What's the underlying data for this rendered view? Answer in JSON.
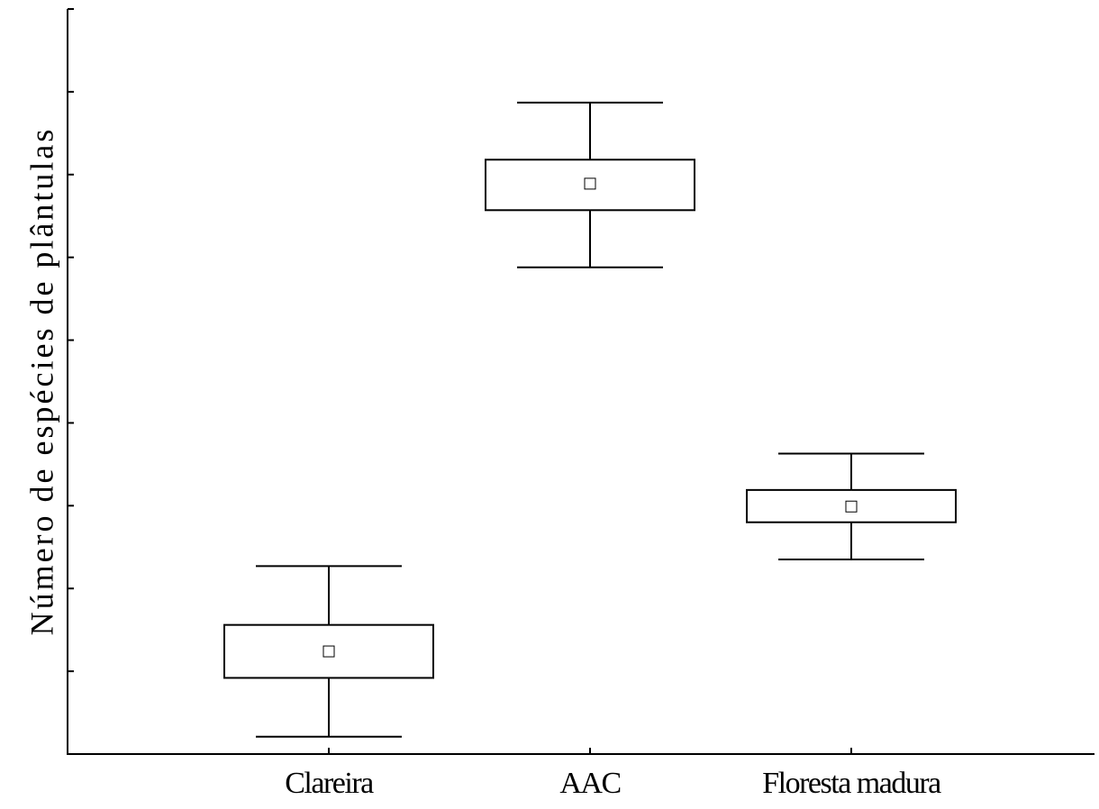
{
  "chart_data": {
    "type": "box",
    "y_label": "Número de espécies de plântulas",
    "categories": [
      "Clareira",
      "AAC",
      "Floresta madura"
    ],
    "boxes": [
      {
        "whisker_low": 0.21,
        "box_low": 0.92,
        "mean": 1.24,
        "box_high": 1.56,
        "whisker_high": 2.27
      },
      {
        "whisker_low": 5.88,
        "box_low": 6.57,
        "mean": 6.89,
        "box_high": 7.18,
        "whisker_high": 7.87
      },
      {
        "whisker_low": 2.35,
        "box_low": 2.8,
        "mean": 2.99,
        "box_high": 3.19,
        "whisker_high": 3.63
      }
    ],
    "ylim": [
      0,
      9
    ],
    "yticks": [
      0,
      1,
      2,
      3,
      4,
      5,
      6,
      7,
      8,
      9
    ],
    "color": "#000000"
  }
}
